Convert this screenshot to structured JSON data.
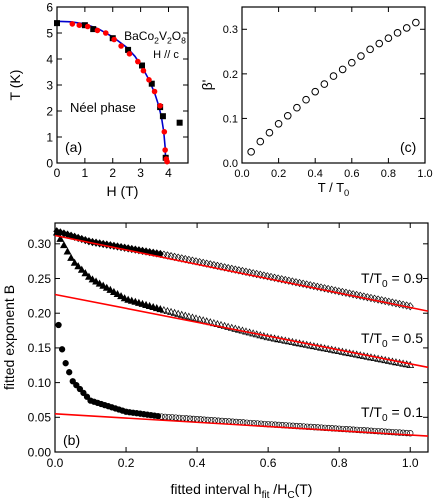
{
  "chart_data": [
    {
      "panel_label": "(a)",
      "type": "scatter",
      "xlabel": "H (T)",
      "ylabel": "T (K)",
      "xlim": [
        0,
        4.7
      ],
      "ylim": [
        0,
        6
      ],
      "xticks": [
        0,
        1,
        2,
        3,
        4
      ],
      "yticks": [
        0,
        1,
        2,
        3,
        4,
        5,
        6
      ],
      "annotations": {
        "compound_parts": [
          "BaCo",
          "2",
          "V",
          "2",
          "O",
          "8"
        ],
        "field": "H // c",
        "phase": "Néel phase"
      },
      "series": [
        {
          "marker": "square",
          "color": "#000000",
          "points": [
            [
              0.0,
              5.38
            ],
            [
              1.0,
              5.3
            ],
            [
              1.3,
              5.15
            ],
            [
              2.0,
              4.8
            ],
            [
              2.55,
              4.35
            ],
            [
              3.05,
              3.75
            ],
            [
              3.4,
              3.05
            ],
            [
              3.7,
              2.15
            ],
            [
              3.8,
              1.8
            ],
            [
              3.9,
              0.2
            ],
            [
              4.4,
              1.55
            ]
          ]
        },
        {
          "marker": "circle",
          "color": "#ff0000",
          "points": [
            [
              0.55,
              5.35
            ],
            [
              0.8,
              5.3
            ],
            [
              1.1,
              5.25
            ],
            [
              1.45,
              5.1
            ],
            [
              1.75,
              5.0
            ],
            [
              2.05,
              4.75
            ],
            [
              2.3,
              4.5
            ],
            [
              2.6,
              4.2
            ],
            [
              2.9,
              3.9
            ],
            [
              3.1,
              3.55
            ],
            [
              3.3,
              3.2
            ],
            [
              3.5,
              2.75
            ],
            [
              3.7,
              2.2
            ],
            [
              3.85,
              1.2
            ],
            [
              3.88,
              0.5
            ],
            [
              3.92,
              0.15
            ],
            [
              3.95,
              0.05
            ]
          ]
        },
        {
          "marker": "line",
          "color": "#0000cc",
          "points": [
            [
              0.0,
              5.45
            ],
            [
              0.5,
              5.43
            ],
            [
              1.0,
              5.35
            ],
            [
              1.5,
              5.15
            ],
            [
              2.0,
              4.85
            ],
            [
              2.5,
              4.45
            ],
            [
              2.8,
              4.1
            ],
            [
              3.1,
              3.6
            ],
            [
              3.3,
              3.2
            ],
            [
              3.5,
              2.7
            ],
            [
              3.65,
              2.2
            ],
            [
              3.75,
              1.75
            ],
            [
              3.83,
              1.2
            ],
            [
              3.88,
              0.6
            ],
            [
              3.9,
              0.0
            ]
          ]
        }
      ]
    },
    {
      "panel_label": "(c)",
      "type": "scatter",
      "xlabel_parts": [
        "T / T",
        "0"
      ],
      "ylabel": "β'",
      "xlim": [
        0,
        1.0
      ],
      "ylim": [
        0,
        0.35
      ],
      "xticks": [
        0.0,
        0.2,
        0.4,
        0.6,
        0.8,
        1.0
      ],
      "yticks": [
        0,
        0.1,
        0.2,
        0.3
      ],
      "series": [
        {
          "marker": "open-circle",
          "color": "#000000",
          "x": [
            0.05,
            0.1,
            0.15,
            0.2,
            0.25,
            0.3,
            0.35,
            0.4,
            0.45,
            0.5,
            0.55,
            0.6,
            0.65,
            0.7,
            0.75,
            0.8,
            0.85,
            0.9,
            0.95
          ],
          "y": [
            0.025,
            0.048,
            0.068,
            0.088,
            0.106,
            0.124,
            0.142,
            0.16,
            0.177,
            0.195,
            0.21,
            0.225,
            0.24,
            0.255,
            0.268,
            0.28,
            0.292,
            0.303,
            0.315
          ]
        }
      ]
    },
    {
      "panel_label": "(b)",
      "type": "scatter",
      "xlabel_parts": [
        "fitted interval h",
        "fit",
        " /H",
        "C",
        "(T)"
      ],
      "ylabel": "fitted exponent B",
      "xlim": [
        0,
        1.05
      ],
      "ylim": [
        0,
        0.33
      ],
      "xticks": [
        0.0,
        0.2,
        0.4,
        0.6,
        0.8,
        1.0
      ],
      "yticks": [
        0,
        0.05,
        0.1,
        0.15,
        0.2,
        0.25,
        0.3
      ],
      "series": [
        {
          "name_parts": [
            "T/T",
            "0",
            " = 0.9"
          ],
          "marker": "diamond",
          "filled_until_x": 0.3,
          "x_range": [
            0.005,
            1.0
          ],
          "anchors": [
            [
              0.005,
              0.318
            ],
            [
              0.1,
              0.303
            ],
            [
              0.3,
              0.285
            ],
            [
              0.6,
              0.253
            ],
            [
              1.0,
              0.21
            ]
          ]
        },
        {
          "name_parts": [
            "T/T",
            "0",
            " = 0.5"
          ],
          "marker": "triangle",
          "filled_until_x": 0.3,
          "x_range": [
            0.005,
            1.0
          ],
          "anchors": [
            [
              0.005,
              0.316
            ],
            [
              0.05,
              0.275
            ],
            [
              0.1,
              0.25
            ],
            [
              0.2,
              0.22
            ],
            [
              0.3,
              0.205
            ],
            [
              0.6,
              0.165
            ],
            [
              1.0,
              0.125
            ]
          ]
        },
        {
          "name_parts": [
            "T/T",
            "0",
            " = 0.1"
          ],
          "marker": "circle",
          "filled_until_x": 0.3,
          "x_range": [
            0.01,
            1.0
          ],
          "anchors": [
            [
              0.01,
              0.183
            ],
            [
              0.02,
              0.148
            ],
            [
              0.03,
              0.128
            ],
            [
              0.05,
              0.102
            ],
            [
              0.1,
              0.074
            ],
            [
              0.2,
              0.058
            ],
            [
              0.3,
              0.051
            ],
            [
              0.6,
              0.04
            ],
            [
              1.0,
              0.027
            ]
          ]
        }
      ],
      "fit_lines": [
        {
          "color": "#ff0000",
          "points": [
            [
              0.0,
              0.312
            ],
            [
              1.05,
              0.203
            ]
          ]
        },
        {
          "color": "#ff0000",
          "points": [
            [
              0.0,
              0.227
            ],
            [
              1.05,
              0.122
            ]
          ]
        },
        {
          "color": "#ff0000",
          "points": [
            [
              0.0,
              0.055
            ],
            [
              1.05,
              0.023
            ]
          ]
        }
      ]
    }
  ]
}
